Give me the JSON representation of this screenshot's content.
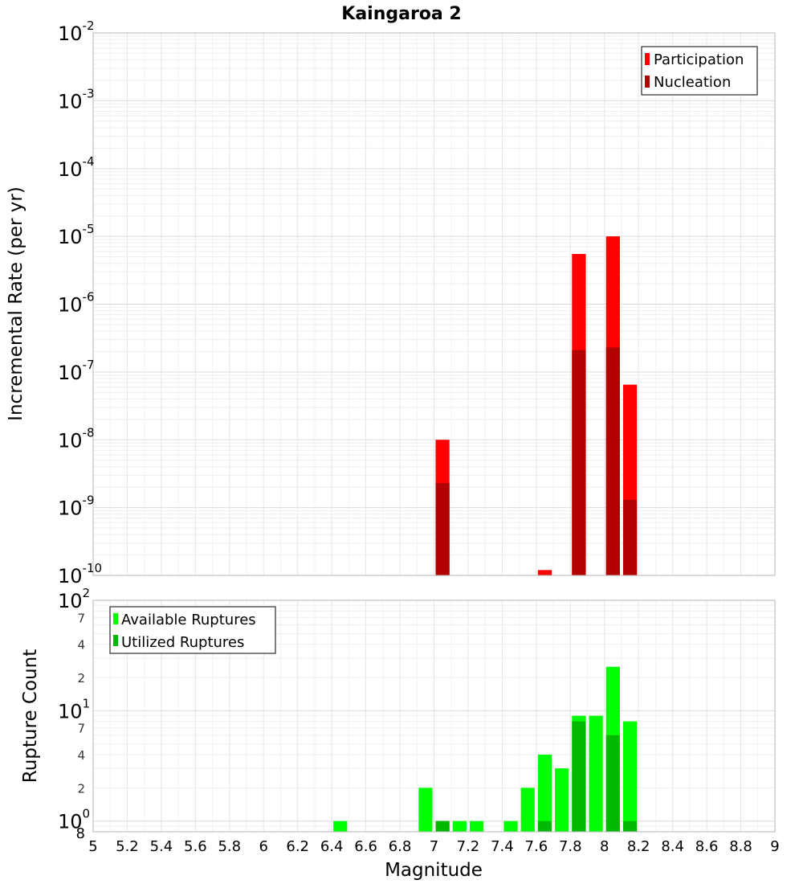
{
  "chart_data": [
    {
      "type": "bar",
      "title": "Kaingaroa 2",
      "xlabel": "Magnitude",
      "ylabel": "Incremental Rate (per yr)",
      "xlim": [
        5,
        9
      ],
      "ylim": [
        1e-10,
        0.01
      ],
      "yscale": "log",
      "bin_width": 0.1,
      "grid": true,
      "legend_position": "top-right",
      "y_tick_labels": [
        {
          "base": "10",
          "exp": "-10"
        },
        {
          "base": "10",
          "exp": "-9"
        },
        {
          "base": "10",
          "exp": "-8"
        },
        {
          "base": "10",
          "exp": "-7"
        },
        {
          "base": "10",
          "exp": "-6"
        },
        {
          "base": "10",
          "exp": "-5"
        },
        {
          "base": "10",
          "exp": "-4"
        },
        {
          "base": "10",
          "exp": "-3"
        },
        {
          "base": "10",
          "exp": "-2"
        }
      ],
      "series": [
        {
          "name": "Participation",
          "color": "#ff0000",
          "points": [
            {
              "x": 7.05,
              "y": 1e-08
            },
            {
              "x": 7.65,
              "y": 1.2e-10
            },
            {
              "x": 7.85,
              "y": 5.5e-06
            },
            {
              "x": 8.05,
              "y": 1e-05
            },
            {
              "x": 8.15,
              "y": 6.5e-08
            }
          ]
        },
        {
          "name": "Nucleation",
          "color": "#b30000",
          "points": [
            {
              "x": 7.05,
              "y": 2.3e-09
            },
            {
              "x": 7.85,
              "y": 2.1e-07
            },
            {
              "x": 8.05,
              "y": 2.3e-07
            },
            {
              "x": 8.15,
              "y": 1.3e-09
            }
          ]
        }
      ]
    },
    {
      "type": "bar",
      "xlabel": "Magnitude",
      "ylabel": "Rupture Count",
      "xlim": [
        5,
        9
      ],
      "ylim": [
        0.8,
        100
      ],
      "yscale": "log",
      "bin_width": 0.1,
      "grid": true,
      "legend_position": "top-left",
      "x_tick_labels": [
        "5",
        "5.2",
        "5.4",
        "5.6",
        "5.8",
        "6",
        "6.2",
        "6.4",
        "6.6",
        "6.8",
        "7",
        "7.2",
        "7.4",
        "7.6",
        "7.8",
        "8",
        "8.2",
        "8.4",
        "8.6",
        "8.8",
        "9"
      ],
      "y_major_tick_labels": [
        {
          "value": 1,
          "base": "10",
          "exp": "0"
        },
        {
          "value": 10,
          "base": "10",
          "exp": "1"
        },
        {
          "value": 100,
          "base": "10",
          "exp": "2"
        }
      ],
      "y_minor_tick_labels": [
        {
          "value": 0.8,
          "label": "8"
        },
        {
          "value": 2,
          "label": "2"
        },
        {
          "value": 4,
          "label": "4"
        },
        {
          "value": 7,
          "label": "7"
        },
        {
          "value": 20,
          "label": "2"
        },
        {
          "value": 40,
          "label": "4"
        },
        {
          "value": 70,
          "label": "7"
        }
      ],
      "series": [
        {
          "name": "Available Ruptures",
          "color": "#00ff00",
          "points": [
            {
              "x": 6.45,
              "y": 1
            },
            {
              "x": 6.95,
              "y": 2
            },
            {
              "x": 7.05,
              "y": 1
            },
            {
              "x": 7.15,
              "y": 1
            },
            {
              "x": 7.25,
              "y": 1
            },
            {
              "x": 7.45,
              "y": 1
            },
            {
              "x": 7.55,
              "y": 2
            },
            {
              "x": 7.65,
              "y": 4
            },
            {
              "x": 7.75,
              "y": 3
            },
            {
              "x": 7.85,
              "y": 9
            },
            {
              "x": 7.95,
              "y": 9
            },
            {
              "x": 8.05,
              "y": 25
            },
            {
              "x": 8.15,
              "y": 8
            }
          ]
        },
        {
          "name": "Utilized Ruptures",
          "color": "#00b800",
          "points": [
            {
              "x": 7.05,
              "y": 1
            },
            {
              "x": 7.65,
              "y": 1
            },
            {
              "x": 7.85,
              "y": 8
            },
            {
              "x": 8.05,
              "y": 6
            },
            {
              "x": 8.15,
              "y": 1
            }
          ]
        }
      ]
    }
  ]
}
